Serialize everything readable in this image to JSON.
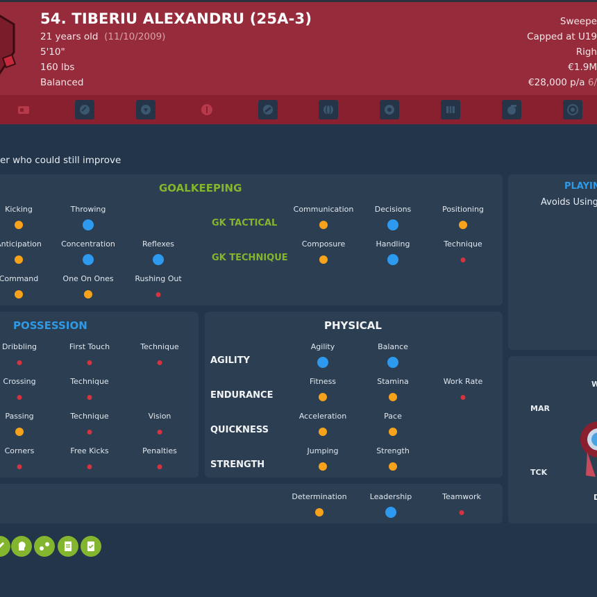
{
  "player": {
    "name": "54. TIBERIU ALEXANDRU (25A-3)",
    "age": "21 years old",
    "dob": "(11/10/2009)",
    "height": "5'10\"",
    "weight": "160 lbs",
    "personality": "Balanced",
    "position": "Sweepe",
    "caps": "Capped at U19",
    "foot": "Righ",
    "value": "€1.9M",
    "wage": "€28,000 p/a",
    "contract": "6/"
  },
  "icon_bar": [
    "id-card-icon",
    "ball-icon",
    "shield-icon",
    "coin-icon",
    "boot-icon",
    "globe-icon",
    "star-badge-icon",
    "map-icon",
    "whistle-icon",
    "target-icon"
  ],
  "description": "er who could still improve",
  "goalkeeping": {
    "title": "GOALKEEPING",
    "gk_tactical_label": "GK TACTICAL",
    "gk_technique_label": "GK TECHNIQUE",
    "left_attrs": [
      {
        "label": "Kicking",
        "level": "o"
      },
      {
        "label": "Throwing",
        "level": "b"
      },
      {
        "label": "Anticipation",
        "level": "o"
      },
      {
        "label": "Concentration",
        "level": "b"
      },
      {
        "label": "Reflexes",
        "level": "b"
      },
      {
        "label": "Command",
        "level": "o"
      },
      {
        "label": "One On Ones",
        "level": "o"
      },
      {
        "label": "Rushing Out",
        "level": "r"
      }
    ],
    "tactical": [
      {
        "label": "Communication",
        "level": "o"
      },
      {
        "label": "Decisions",
        "level": "b"
      },
      {
        "label": "Positioning",
        "level": "o"
      }
    ],
    "technique": [
      {
        "label": "Composure",
        "level": "o"
      },
      {
        "label": "Handling",
        "level": "b"
      },
      {
        "label": "Technique",
        "level": "r"
      }
    ]
  },
  "possession": {
    "title": "POSSESSION",
    "rows": [
      [
        {
          "label": "Dribbling",
          "level": "r"
        },
        {
          "label": "First Touch",
          "level": "r"
        },
        {
          "label": "Technique",
          "level": "r"
        }
      ],
      [
        {
          "label": "Crossing",
          "level": "r"
        },
        {
          "label": "Technique",
          "level": "r"
        }
      ],
      [
        {
          "label": "Passing",
          "level": "o"
        },
        {
          "label": "Technique",
          "level": "r"
        },
        {
          "label": "Vision",
          "level": "r"
        }
      ],
      [
        {
          "label": "Corners",
          "level": "r"
        },
        {
          "label": "Free Kicks",
          "level": "r"
        },
        {
          "label": "Penalties",
          "level": "r"
        }
      ]
    ]
  },
  "physical": {
    "title": "PHYSICAL",
    "groups": [
      {
        "label": "AGILITY",
        "attrs": [
          {
            "label": "Agility",
            "level": "b"
          },
          {
            "label": "Balance",
            "level": "b"
          }
        ]
      },
      {
        "label": "ENDURANCE",
        "attrs": [
          {
            "label": "Fitness",
            "level": "o"
          },
          {
            "label": "Stamina",
            "level": "o"
          },
          {
            "label": "Work Rate",
            "level": "r"
          }
        ]
      },
      {
        "label": "QUICKNESS",
        "attrs": [
          {
            "label": "Acceleration",
            "level": "o"
          },
          {
            "label": "Pace",
            "level": "o"
          }
        ]
      },
      {
        "label": "STRENGTH",
        "attrs": [
          {
            "label": "Jumping",
            "level": "o"
          },
          {
            "label": "Strength",
            "level": "o"
          }
        ]
      }
    ]
  },
  "mental": {
    "attrs": [
      {
        "label": "Determination",
        "level": "o"
      },
      {
        "label": "Leadership",
        "level": "b"
      },
      {
        "label": "Teamwork",
        "level": "r"
      }
    ]
  },
  "side": {
    "playing_title": "PLAYIN",
    "playing_text": "Avoids Using",
    "w_label": "W",
    "mar_label": "MAR",
    "tck_label": "TCK",
    "d_label": "D"
  },
  "traits": [
    "shoot-icon",
    "head-icon",
    "pass-icon",
    "clipboard-icon",
    "clipboard-check-icon"
  ],
  "colors": {
    "orange": "#f7a21b",
    "blue": "#2d99ef",
    "red": "#d63340",
    "green": "#84b52f",
    "header": "#962c3b"
  }
}
